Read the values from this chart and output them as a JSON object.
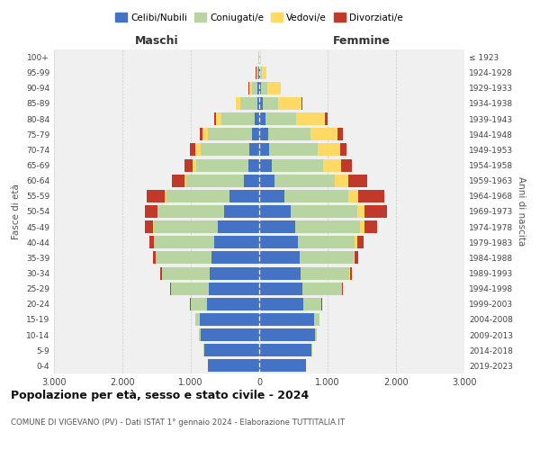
{
  "age_groups": [
    "0-4",
    "5-9",
    "10-14",
    "15-19",
    "20-24",
    "25-29",
    "30-34",
    "35-39",
    "40-44",
    "45-49",
    "50-54",
    "55-59",
    "60-64",
    "65-69",
    "70-74",
    "75-79",
    "80-84",
    "85-89",
    "90-94",
    "95-99",
    "100+"
  ],
  "birth_years": [
    "2019-2023",
    "2014-2018",
    "2009-2013",
    "2004-2008",
    "1999-2003",
    "1994-1998",
    "1989-1993",
    "1984-1988",
    "1979-1983",
    "1974-1978",
    "1969-1973",
    "1964-1968",
    "1959-1963",
    "1954-1958",
    "1949-1953",
    "1944-1948",
    "1939-1943",
    "1934-1938",
    "1929-1933",
    "1924-1928",
    "≤ 1923"
  ],
  "male": {
    "celibe": [
      750,
      800,
      860,
      870,
      760,
      740,
      720,
      700,
      660,
      600,
      510,
      440,
      220,
      160,
      140,
      110,
      70,
      30,
      20,
      10,
      5
    ],
    "coniugato": [
      5,
      10,
      20,
      60,
      240,
      550,
      700,
      810,
      880,
      940,
      960,
      920,
      840,
      760,
      720,
      640,
      480,
      250,
      90,
      25,
      5
    ],
    "vedovo": [
      0,
      0,
      0,
      1,
      2,
      3,
      5,
      5,
      5,
      10,
      15,
      20,
      30,
      50,
      70,
      80,
      80,
      60,
      40,
      10,
      2
    ],
    "divorziato": [
      0,
      0,
      0,
      2,
      5,
      10,
      20,
      40,
      60,
      120,
      190,
      270,
      190,
      120,
      80,
      45,
      25,
      8,
      5,
      3,
      0
    ]
  },
  "female": {
    "nubile": [
      680,
      760,
      810,
      800,
      650,
      630,
      610,
      590,
      560,
      530,
      460,
      370,
      230,
      180,
      150,
      130,
      90,
      50,
      30,
      15,
      5
    ],
    "coniugata": [
      5,
      10,
      30,
      80,
      260,
      580,
      710,
      790,
      840,
      940,
      980,
      930,
      870,
      760,
      700,
      620,
      450,
      230,
      90,
      30,
      5
    ],
    "vedova": [
      0,
      0,
      1,
      2,
      3,
      5,
      10,
      20,
      40,
      70,
      100,
      150,
      200,
      260,
      330,
      400,
      420,
      340,
      190,
      55,
      15
    ],
    "divorziata": [
      0,
      0,
      0,
      2,
      5,
      10,
      20,
      50,
      80,
      190,
      330,
      380,
      280,
      160,
      90,
      70,
      40,
      15,
      8,
      3,
      0
    ]
  },
  "colors": {
    "celibe": "#4472C4",
    "coniugato": "#B8D4A0",
    "vedovo": "#FFD966",
    "divorziato": "#C0392B"
  },
  "title": "Popolazione per età, sesso e stato civile - 2024",
  "subtitle": "COMUNE DI VIGEVANO (PV) - Dati ISTAT 1° gennaio 2024 - Elaborazione TUTTITALIA.IT",
  "xlabel_left": "Maschi",
  "xlabel_right": "Femmine",
  "ylabel_left": "Fasce di età",
  "ylabel_right": "Anni di nascita",
  "xlim": 3000,
  "background_color": "#f0f0f0"
}
